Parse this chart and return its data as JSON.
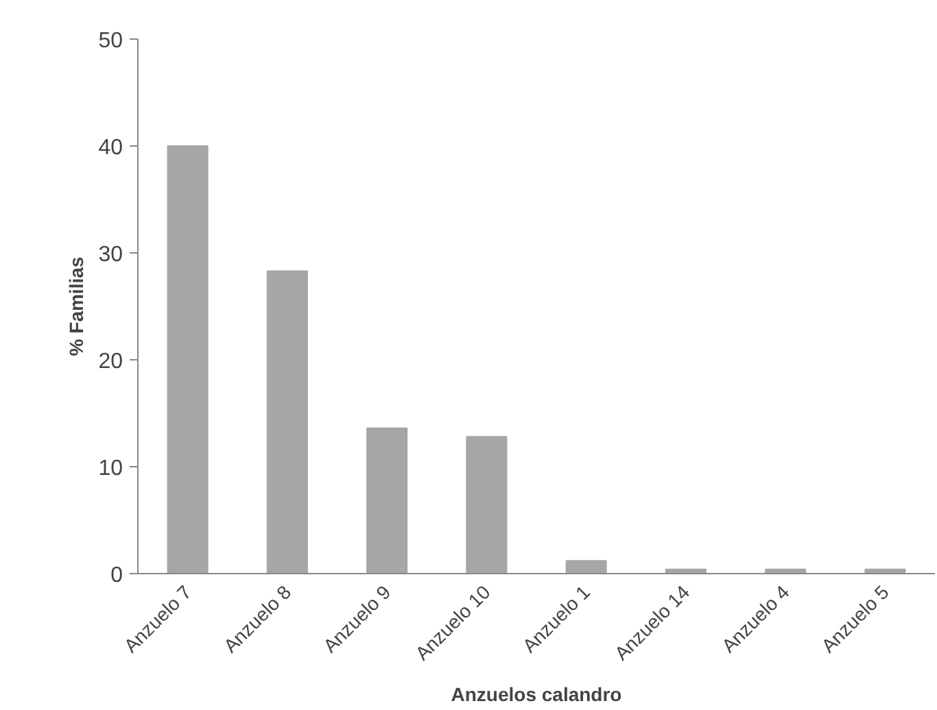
{
  "chart_data": {
    "type": "bar",
    "xlabel": "Anzuelos calandro",
    "ylabel": "% Familias",
    "categories": [
      "Anzuelo 7",
      "Anzuelo 8",
      "Anzuelo 9",
      "Anzuelo 10",
      "Anzuelo 1",
      "Anzuelo 14",
      "Anzuelo 4",
      "Anzuelo 5"
    ],
    "values": [
      40.0,
      28.3,
      13.6,
      12.8,
      1.2,
      0.4,
      0.4,
      0.4
    ],
    "color": "#a6a6a6",
    "ylim": [
      0,
      50
    ],
    "yticks": [
      0,
      10,
      20,
      30,
      40,
      50
    ]
  }
}
